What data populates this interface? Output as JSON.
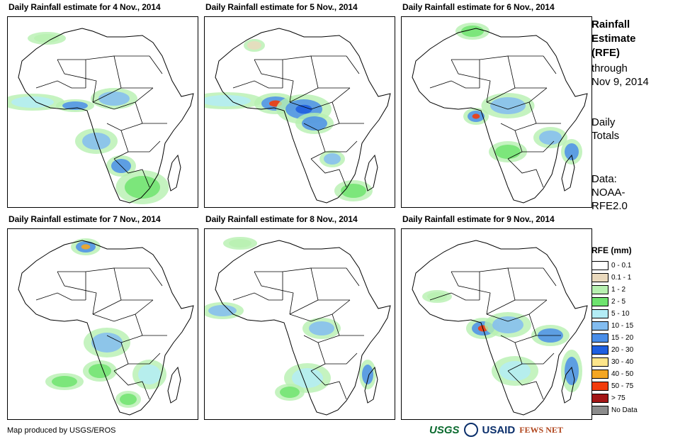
{
  "panels": [
    {
      "title": "Daily Rainfall estimate for 4 Nov., 2014"
    },
    {
      "title": "Daily Rainfall estimate for 5 Nov., 2014"
    },
    {
      "title": "Daily Rainfall estimate for 6 Nov., 2014"
    },
    {
      "title": "Daily Rainfall estimate for 7 Nov., 2014"
    },
    {
      "title": "Daily Rainfall estimate for 8 Nov., 2014"
    },
    {
      "title": "Daily Rainfall estimate for 9 Nov., 2014"
    }
  ],
  "side": {
    "title_line1": "Rainfall",
    "title_line2": "Estimate",
    "title_line3": "(RFE)",
    "through_line1": "through",
    "through_line2": "Nov 9, 2014",
    "totals_line1": "Daily",
    "totals_line2": "Totals",
    "data_line1": "Data:",
    "data_line2": "NOAA-",
    "data_line3": "RFE2.0"
  },
  "legend": {
    "title": "RFE (mm)",
    "items": [
      {
        "label": "0 - 0.1",
        "color": "#ffffff"
      },
      {
        "label": "0.1 - 1",
        "color": "#e9d9bd"
      },
      {
        "label": "1 - 2",
        "color": "#b7f0b0"
      },
      {
        "label": "2 - 5",
        "color": "#6ee36e"
      },
      {
        "label": "5 - 10",
        "color": "#b3ecf5"
      },
      {
        "label": "10 - 15",
        "color": "#82bcf0"
      },
      {
        "label": "15 - 20",
        "color": "#4a8ee8"
      },
      {
        "label": "20 - 30",
        "color": "#1f5fe0"
      },
      {
        "label": "30 - 40",
        "color": "#fde58a"
      },
      {
        "label": "40 - 50",
        "color": "#f4a623"
      },
      {
        "label": "50 - 75",
        "color": "#f23c0c"
      },
      {
        "label": "> 75",
        "color": "#a31616"
      },
      {
        "label": "No Data",
        "color": "#8c8c8c"
      }
    ]
  },
  "credit": "Map produced by USGS/EROS",
  "logos": {
    "usgs": "USGS",
    "usaid": "USAID",
    "fews": "FEWS NET"
  }
}
